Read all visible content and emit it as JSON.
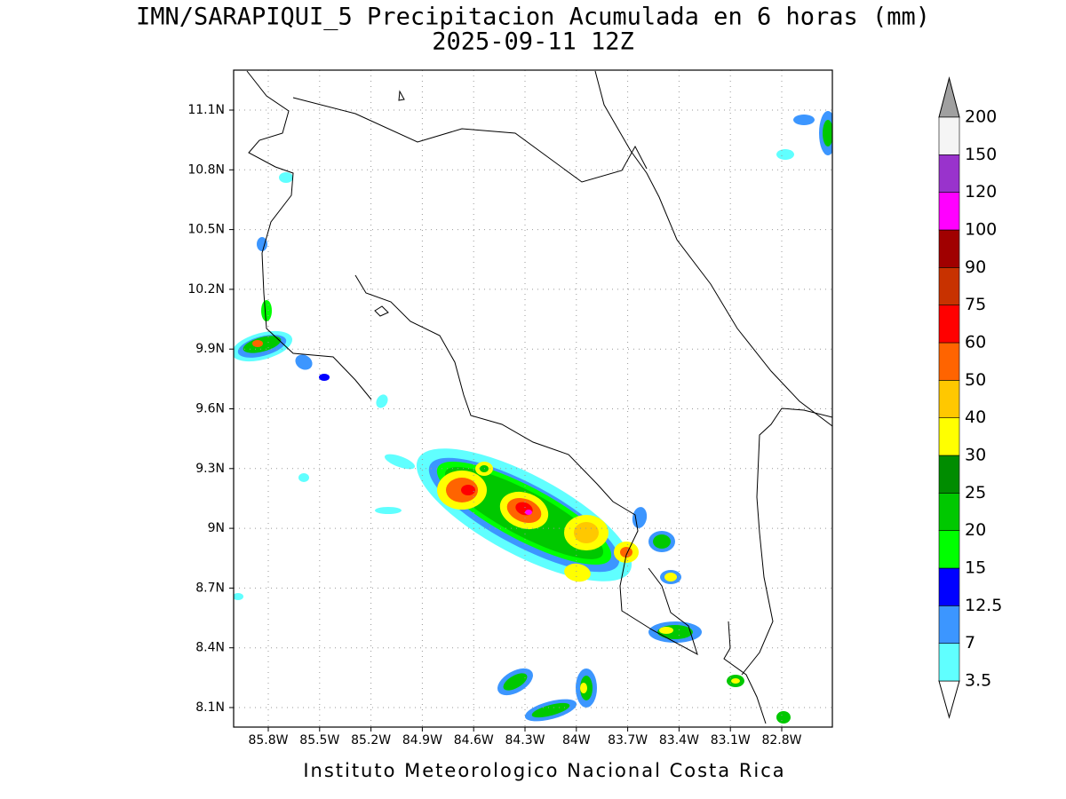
{
  "header": {
    "title": "IMN/SARAPIQUI_5 Precipitacion Acumulada en 6 horas (mm)",
    "subtitle": "2025-09-11 12Z"
  },
  "map": {
    "lat_labels": [
      "11.1N",
      "10.8N",
      "10.5N",
      "10.2N",
      "9.9N",
      "9.6N",
      "9.3N",
      "9N",
      "8.7N",
      "8.4N",
      "8.1N"
    ],
    "lon_labels": [
      "85.8W",
      "85.5W",
      "85.2W",
      "84.9W",
      "84.6W",
      "84.3W",
      "84W",
      "83.7W",
      "83.4W",
      "83.1W",
      "82.8W"
    ]
  },
  "colorbar": {
    "below_color": "#ffffff",
    "above_color": "#a0a0a0",
    "levels": [
      {
        "label": "3.5",
        "color": "#60ffff"
      },
      {
        "label": "7",
        "color": "#3c96ff"
      },
      {
        "label": "12.5",
        "color": "#0000ff"
      },
      {
        "label": "15",
        "color": "#00ff00"
      },
      {
        "label": "20",
        "color": "#00c800"
      },
      {
        "label": "25",
        "color": "#008c00"
      },
      {
        "label": "30",
        "color": "#ffff00"
      },
      {
        "label": "40",
        "color": "#ffc800"
      },
      {
        "label": "50",
        "color": "#ff6400"
      },
      {
        "label": "60",
        "color": "#ff0000"
      },
      {
        "label": "75",
        "color": "#c83200"
      },
      {
        "label": "90",
        "color": "#a00000"
      },
      {
        "label": "100",
        "color": "#ff00ff"
      },
      {
        "label": "120",
        "color": "#9933cc"
      },
      {
        "label": "150",
        "color": "#f5f5f5"
      },
      {
        "label": "200",
        "color": null
      }
    ]
  },
  "footer": "Instituto Meteorologico Nacional Costa Rica"
}
